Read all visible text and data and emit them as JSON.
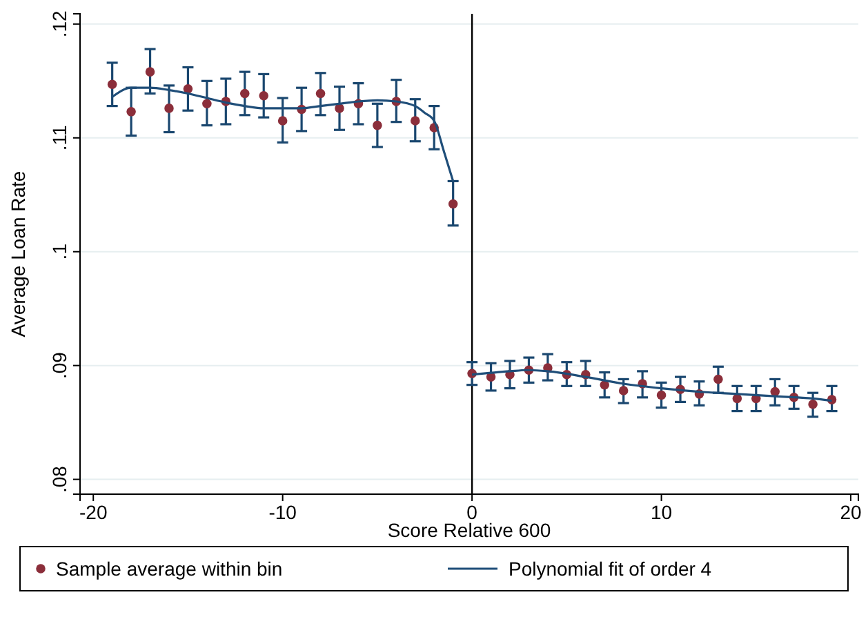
{
  "chart_data": {
    "type": "scatter",
    "xlabel": "Score Relative 600",
    "ylabel": "Average Loan Rate",
    "xlim": [
      -20.7,
      20.4
    ],
    "ylim": [
      0.0787,
      0.1209
    ],
    "xticks": [
      -20,
      -10,
      0,
      10,
      20
    ],
    "yticks": [
      {
        "value": 0.08,
        "label": ".08"
      },
      {
        "value": 0.09,
        "label": ".09"
      },
      {
        "value": 0.1,
        "label": ".1"
      },
      {
        "value": 0.11,
        "label": ".11"
      },
      {
        "value": 0.12,
        "label": ".12"
      }
    ],
    "grid": "y",
    "legend": "bottom",
    "ref_lines": [
      {
        "axis": "x",
        "value": 0,
        "color": "#000000"
      }
    ],
    "series": [
      {
        "type": "scatter",
        "name": "Sample average within bin",
        "color": "#8b2e3a",
        "marker": "circle",
        "x": [
          -19,
          -18,
          -17,
          -16,
          -15,
          -14,
          -13,
          -12,
          -11,
          -10,
          -9,
          -8,
          -7,
          -6,
          -5,
          -4,
          -3,
          -2,
          -1,
          0,
          1,
          2,
          3,
          4,
          5,
          6,
          7,
          8,
          9,
          10,
          11,
          12,
          13,
          14,
          15,
          16,
          17,
          18,
          19
        ],
        "values": [
          0.1147,
          0.1123,
          0.1158,
          0.1126,
          0.1143,
          0.113,
          0.1132,
          0.1139,
          0.1137,
          0.1115,
          0.1125,
          0.1139,
          0.1126,
          0.113,
          0.1111,
          0.1132,
          0.1115,
          0.1109,
          0.1042,
          0.0893,
          0.089,
          0.0892,
          0.0896,
          0.0898,
          0.0892,
          0.0892,
          0.0883,
          0.0878,
          0.0884,
          0.0874,
          0.0879,
          0.0875,
          0.0888,
          0.0871,
          0.0871,
          0.0877,
          0.0872,
          0.0866,
          0.087
        ],
        "errors": [
          [
            0.1128,
            0.1166
          ],
          [
            0.1102,
            0.1144
          ],
          [
            0.1139,
            0.1178
          ],
          [
            0.1105,
            0.1146
          ],
          [
            0.1124,
            0.1162
          ],
          [
            0.1111,
            0.115
          ],
          [
            0.1112,
            0.1152
          ],
          [
            0.112,
            0.1158
          ],
          [
            0.1118,
            0.1156
          ],
          [
            0.1096,
            0.1135
          ],
          [
            0.1106,
            0.1144
          ],
          [
            0.112,
            0.1157
          ],
          [
            0.1107,
            0.1145
          ],
          [
            0.1112,
            0.1148
          ],
          [
            0.1092,
            0.113
          ],
          [
            0.1114,
            0.1151
          ],
          [
            0.1097,
            0.1134
          ],
          [
            0.109,
            0.1128
          ],
          [
            0.1023,
            0.1062
          ],
          [
            0.0883,
            0.0903
          ],
          [
            0.0878,
            0.0902
          ],
          [
            0.088,
            0.0904
          ],
          [
            0.0885,
            0.0907
          ],
          [
            0.0887,
            0.091
          ],
          [
            0.0882,
            0.0903
          ],
          [
            0.0882,
            0.0904
          ],
          [
            0.0872,
            0.0894
          ],
          [
            0.0867,
            0.0888
          ],
          [
            0.0872,
            0.0895
          ],
          [
            0.0863,
            0.0885
          ],
          [
            0.0868,
            0.089
          ],
          [
            0.0865,
            0.0886
          ],
          [
            0.0876,
            0.0899
          ],
          [
            0.086,
            0.0882
          ],
          [
            0.086,
            0.0882
          ],
          [
            0.0865,
            0.0888
          ],
          [
            0.0862,
            0.0882
          ],
          [
            0.0855,
            0.0876
          ],
          [
            0.086,
            0.0882
          ]
        ]
      },
      {
        "type": "line",
        "name": "Polynomial fit of order 4",
        "color": "#1f4e79",
        "x": [
          -19,
          -18,
          -17,
          -16,
          -15,
          -14,
          -13,
          -12,
          -11,
          -10,
          -9,
          -8,
          -7,
          -6,
          -5,
          -4,
          -3,
          -2.5,
          -2,
          -1.5,
          -1,
          null,
          0,
          2,
          3,
          4,
          6,
          8,
          10,
          12,
          14,
          16,
          18,
          19
        ],
        "values": [
          0.1136,
          0.1144,
          0.1144,
          0.1142,
          0.1139,
          0.1135,
          0.1131,
          0.1128,
          0.1126,
          0.1126,
          0.1126,
          0.1128,
          0.113,
          0.1132,
          0.1133,
          0.1132,
          0.1128,
          0.1122,
          0.1115,
          0.1089,
          0.1062,
          null,
          0.0892,
          0.0895,
          0.0896,
          0.0895,
          0.089,
          0.0884,
          0.088,
          0.0877,
          0.0875,
          0.0873,
          0.0871,
          0.0869
        ]
      }
    ]
  }
}
